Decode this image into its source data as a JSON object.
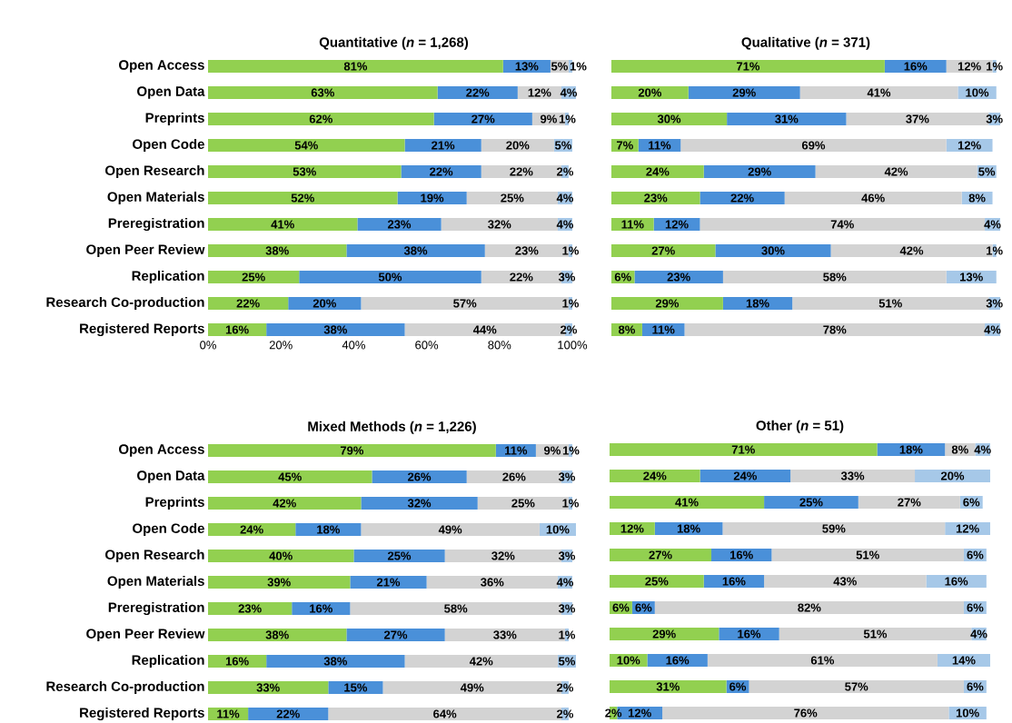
{
  "chart_data": [
    {
      "type": "bar",
      "orientation": "horizontal",
      "stacked": true,
      "title": "Quantitative (*n* = 1,268)",
      "categories": [
        "Open Access",
        "Open Data",
        "Preprints",
        "Open Code",
        "Open Research",
        "Open Materials",
        "Preregistration",
        "Open Peer Review",
        "Replication",
        "Research Co-production",
        "Registered Reports"
      ],
      "xlim": [
        0,
        102
      ],
      "xticks": [
        {
          "value": 0,
          "label": "0%"
        },
        {
          "value": 20,
          "label": "20%"
        },
        {
          "value": 40,
          "label": "40%"
        },
        {
          "value": 60,
          "label": "60%"
        },
        {
          "value": 80,
          "label": "80%"
        },
        {
          "value": 100,
          "label": "100%"
        }
      ],
      "series": [
        {
          "color": "#92d050",
          "values": [
            81,
            63,
            62,
            54,
            53,
            52,
            41,
            38,
            25,
            22,
            16
          ],
          "value_labels": [
            "81%",
            "63%",
            "62%",
            "54%",
            "53%",
            "52%",
            "41%",
            "38%",
            "25%",
            "22%",
            "16%"
          ]
        },
        {
          "color": "#4a90d9",
          "values": [
            13,
            22,
            27,
            21,
            22,
            19,
            23,
            38,
            50,
            20,
            38
          ],
          "value_labels": [
            "13%",
            "22%",
            "27%",
            "21%",
            "22%",
            "19%",
            "23%",
            "38%",
            "50%",
            "20%",
            "38%"
          ]
        },
        {
          "color": "#d3d3d3",
          "values": [
            5,
            12,
            9,
            20,
            22,
            25,
            32,
            23,
            22,
            57,
            44
          ],
          "value_labels": [
            "5%",
            "12%",
            "9%",
            "20%",
            "22%",
            "25%",
            "32%",
            "23%",
            "22%",
            "57%",
            "44%"
          ]
        },
        {
          "color": "#a6c8e8",
          "values": [
            1,
            4,
            1,
            5,
            2,
            4,
            4,
            1,
            3,
            1,
            2
          ],
          "value_labels": [
            "1%",
            "4%",
            "1%",
            "5%",
            "2%",
            "4%",
            "4%",
            "1%",
            "3%",
            "1%",
            "2%"
          ]
        }
      ]
    },
    {
      "type": "bar",
      "orientation": "horizontal",
      "stacked": true,
      "title": "Qualitative (*n* = 371)",
      "tick_labels": false,
      "categories": [
        null,
        null,
        null,
        null,
        null,
        null,
        null,
        null,
        null,
        null,
        null
      ],
      "series": [
        {
          "color": "#92d050",
          "values": [
            71,
            20,
            30,
            7,
            24,
            23,
            11,
            27,
            6,
            29,
            8
          ],
          "value_labels": [
            "71%",
            "20%",
            "30%",
            "7%",
            "24%",
            "23%",
            "11%",
            "27%",
            "6%",
            "29%",
            "8%"
          ]
        },
        {
          "color": "#4a90d9",
          "values": [
            16,
            29,
            31,
            11,
            29,
            22,
            12,
            30,
            23,
            18,
            11
          ],
          "value_labels": [
            "16%",
            "29%",
            "31%",
            "11%",
            "29%",
            "22%",
            "12%",
            "30%",
            "23%",
            "18%",
            "11%"
          ]
        },
        {
          "color": "#d3d3d3",
          "values": [
            12,
            41,
            37,
            69,
            42,
            46,
            74,
            42,
            58,
            51,
            78
          ],
          "value_labels": [
            "12%",
            "41%",
            "37%",
            "69%",
            "42%",
            "46%",
            "74%",
            "42%",
            "58%",
            "51%",
            "78%"
          ]
        },
        {
          "color": "#a6c8e8",
          "values": [
            1,
            10,
            3,
            12,
            5,
            8,
            4,
            1,
            13,
            3,
            4
          ],
          "value_labels": [
            "1%",
            "10%",
            "3%",
            "12%",
            "5%",
            "8%",
            "4%",
            "1%",
            "13%",
            "3%",
            "4%"
          ]
        }
      ]
    },
    {
      "type": "bar",
      "orientation": "horizontal",
      "stacked": true,
      "title": "Mixed Methods (*n* = 1,226)",
      "tick_labels": "y",
      "categories": [
        "Open Access",
        "Open Data",
        "Preprints",
        "Open Code",
        "Open Research",
        "Open Materials",
        "Preregistration",
        "Open Peer Review",
        "Replication",
        "Research Co-production",
        "Registered Reports"
      ],
      "series": [
        {
          "color": "#92d050",
          "values": [
            79,
            45,
            42,
            24,
            40,
            39,
            23,
            38,
            16,
            33,
            11
          ],
          "value_labels": [
            "79%",
            "45%",
            "42%",
            "24%",
            "40%",
            "39%",
            "23%",
            "38%",
            "16%",
            "33%",
            "11%"
          ]
        },
        {
          "color": "#4a90d9",
          "values": [
            11,
            26,
            32,
            18,
            25,
            21,
            16,
            27,
            38,
            15,
            22
          ],
          "value_labels": [
            "11%",
            "26%",
            "32%",
            "18%",
            "25%",
            "21%",
            "16%",
            "27%",
            "38%",
            "15%",
            "22%"
          ]
        },
        {
          "color": "#d3d3d3",
          "values": [
            9,
            26,
            25,
            49,
            32,
            36,
            58,
            33,
            42,
            49,
            64
          ],
          "value_labels": [
            "9%",
            "26%",
            "25%",
            "49%",
            "32%",
            "36%",
            "58%",
            "33%",
            "42%",
            "49%",
            "64%"
          ]
        },
        {
          "color": "#a6c8e8",
          "values": [
            1,
            3,
            1,
            10,
            3,
            4,
            3,
            1,
            5,
            2,
            2
          ],
          "value_labels": [
            "1%",
            "3%",
            "1%",
            "10%",
            "3%",
            "4%",
            "3%",
            "1%",
            "5%",
            "2%",
            "2%"
          ]
        }
      ]
    },
    {
      "type": "bar",
      "orientation": "horizontal",
      "stacked": true,
      "title": "Other (*n* = 51)",
      "tick_labels": false,
      "categories": [
        null,
        null,
        null,
        null,
        null,
        null,
        null,
        null,
        null,
        null,
        null
      ],
      "series": [
        {
          "color": "#92d050",
          "values": [
            71,
            24,
            41,
            12,
            27,
            25,
            6,
            29,
            10,
            31,
            2
          ],
          "value_labels": [
            "71%",
            "24%",
            "41%",
            "12%",
            "27%",
            "25%",
            "6%",
            "29%",
            "10%",
            "31%",
            "2%"
          ]
        },
        {
          "color": "#4a90d9",
          "values": [
            18,
            24,
            25,
            18,
            16,
            16,
            6,
            16,
            16,
            6,
            12
          ],
          "value_labels": [
            "18%",
            "24%",
            "25%",
            "18%",
            "16%",
            "16%",
            "6%",
            "16%",
            "16%",
            "6%",
            "12%"
          ]
        },
        {
          "color": "#d3d3d3",
          "values": [
            8,
            33,
            27,
            59,
            51,
            43,
            82,
            51,
            61,
            57,
            76
          ],
          "value_labels": [
            "8%",
            "33%",
            "27%",
            "59%",
            "51%",
            "43%",
            "82%",
            "51%",
            "61%",
            "57%",
            "76%"
          ]
        },
        {
          "color": "#a6c8e8",
          "values": [
            4,
            20,
            6,
            12,
            6,
            16,
            6,
            4,
            14,
            6,
            10
          ],
          "value_labels": [
            "4%",
            "20%",
            "6%",
            "12%",
            "6%",
            "16%",
            "6%",
            "4%",
            "14%",
            "6%",
            "10%"
          ]
        }
      ]
    }
  ]
}
